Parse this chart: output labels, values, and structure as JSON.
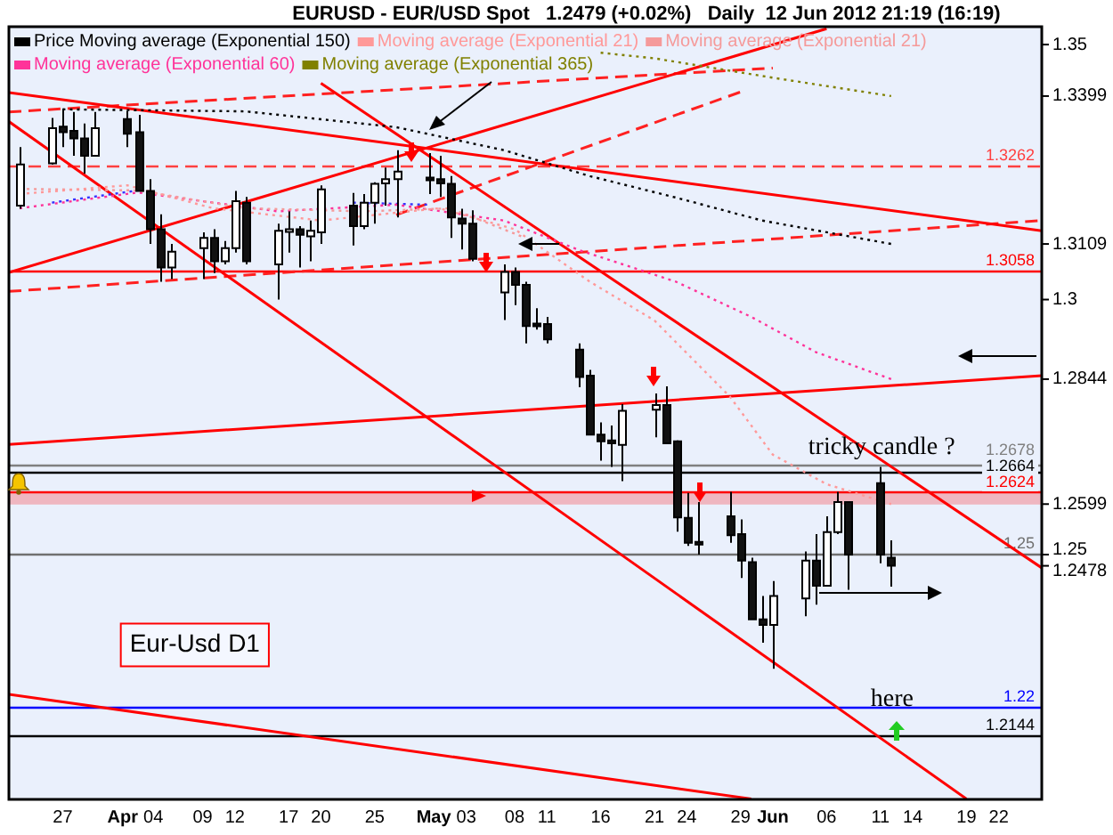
{
  "chart_data": {
    "type": "candlestick",
    "title": "EURUSD - EUR/USD Spot   1.2479 (+0.02%)   Daily  12 Jun 2012 21:19 (16:19)",
    "x": [
      "2012-03-23",
      "2012-03-26",
      "2012-03-27",
      "2012-03-28",
      "2012-03-29",
      "2012-03-30",
      "2012-04-02",
      "2012-04-03",
      "2012-04-04",
      "2012-04-05",
      "2012-04-06",
      "2012-04-09",
      "2012-04-10",
      "2012-04-11",
      "2012-04-12",
      "2012-04-13",
      "2012-04-16",
      "2012-04-17",
      "2012-04-18",
      "2012-04-19",
      "2012-04-20",
      "2012-04-23",
      "2012-04-24",
      "2012-04-25",
      "2012-04-26",
      "2012-04-27",
      "2012-04-30",
      "2012-05-01",
      "2012-05-02",
      "2012-05-03",
      "2012-05-04",
      "2012-05-07",
      "2012-05-08",
      "2012-05-09",
      "2012-05-10",
      "2012-05-11",
      "2012-05-14",
      "2012-05-15",
      "2012-05-16",
      "2012-05-17",
      "2012-05-18",
      "2012-05-21",
      "2012-05-22",
      "2012-05-23",
      "2012-05-24",
      "2012-05-25",
      "2012-05-28",
      "2012-05-29",
      "2012-05-30",
      "2012-05-31",
      "2012-06-01",
      "2012-06-04",
      "2012-06-05",
      "2012-06-06",
      "2012-06-07",
      "2012-06-08",
      "2012-06-11",
      "2012-06-12"
    ],
    "ohlc": [
      [
        1.3184,
        1.3299,
        1.3178,
        1.3265
      ],
      [
        1.3267,
        1.3356,
        1.3265,
        1.3336
      ],
      [
        1.3339,
        1.3374,
        1.3299,
        1.3328
      ],
      [
        1.3331,
        1.3368,
        1.3282,
        1.3316
      ],
      [
        1.3316,
        1.3345,
        1.3247,
        1.3282
      ],
      [
        1.3282,
        1.3368,
        1.3282,
        1.3336
      ],
      [
        1.3354,
        1.337,
        1.3299,
        1.3325
      ],
      [
        1.3328,
        1.3362,
        1.3213,
        1.3213
      ],
      [
        1.3213,
        1.3236,
        1.3109,
        1.3138
      ],
      [
        1.3138,
        1.3167,
        1.3035,
        1.3063
      ],
      [
        1.3063,
        1.3109,
        1.304,
        1.3094
      ],
      [
        1.3101,
        1.3132,
        1.304,
        1.3121
      ],
      [
        1.3121,
        1.3138,
        1.3052,
        1.3075
      ],
      [
        1.3075,
        1.3115,
        1.3069,
        1.3101
      ],
      [
        1.3101,
        1.3213,
        1.3092,
        1.3193
      ],
      [
        1.319,
        1.3201,
        1.3069,
        1.3075
      ],
      [
        1.3069,
        1.3149,
        1.3,
        1.3135
      ],
      [
        1.3134,
        1.3173,
        1.3092,
        1.3138
      ],
      [
        1.3138,
        1.3144,
        1.3063,
        1.3127
      ],
      [
        1.3124,
        1.3155,
        1.3075,
        1.3135
      ],
      [
        1.3132,
        1.3224,
        1.3109,
        1.3216
      ],
      [
        1.3184,
        1.3209,
        1.3106,
        1.3144
      ],
      [
        1.3144,
        1.3207,
        1.3138,
        1.319
      ],
      [
        1.319,
        1.323,
        1.3149,
        1.3227
      ],
      [
        1.3228,
        1.3259,
        1.3184,
        1.3236
      ],
      [
        1.3236,
        1.3293,
        1.3161,
        1.3251
      ],
      [
        1.3239,
        1.3287,
        1.3207,
        1.3236
      ],
      [
        1.3236,
        1.3282,
        1.3201,
        1.3228
      ],
      [
        1.3227,
        1.3242,
        1.3121,
        1.3161
      ],
      [
        1.3159,
        1.3178,
        1.3098,
        1.3149
      ],
      [
        1.3149,
        1.3175,
        1.3075,
        1.308
      ],
      [
        1.3014,
        1.3069,
        1.296,
        1.3054
      ],
      [
        1.3054,
        1.3063,
        1.2989,
        1.3029
      ],
      [
        1.3029,
        1.3035,
        1.2914,
        1.2948
      ],
      [
        1.2953,
        1.2983,
        1.2941,
        1.295
      ],
      [
        1.2952,
        1.2966,
        1.2914,
        1.2922
      ],
      [
        1.2902,
        1.2914,
        1.2828,
        1.2848
      ],
      [
        1.2851,
        1.2862,
        1.2735,
        1.2735
      ],
      [
        1.2735,
        1.2759,
        1.2684,
        1.2722
      ],
      [
        1.2724,
        1.2753,
        1.2672,
        1.2718
      ],
      [
        1.2715,
        1.2795,
        1.2644,
        1.2782
      ],
      [
        1.2784,
        1.2816,
        1.273,
        1.2793
      ],
      [
        1.2793,
        1.283,
        1.2718,
        1.2718
      ],
      [
        1.2722,
        1.2724,
        1.2545,
        1.2573
      ],
      [
        1.2572,
        1.2621,
        1.2517,
        1.2523
      ],
      [
        1.2525,
        1.2603,
        1.25,
        1.252
      ],
      [
        1.2575,
        1.2623,
        1.2523,
        1.2538
      ],
      [
        1.254,
        1.2569,
        1.2454,
        1.2488
      ],
      [
        1.2485,
        1.2494,
        1.2373,
        1.2373
      ],
      [
        1.2373,
        1.2419,
        1.2327,
        1.2362
      ],
      [
        1.2362,
        1.2448,
        1.2276,
        1.2419
      ],
      [
        1.2414,
        1.2506,
        1.2379,
        1.2488
      ],
      [
        1.2488,
        1.254,
        1.2402,
        1.2439
      ],
      [
        1.2439,
        1.2575,
        1.2439,
        1.2544
      ],
      [
        1.2544,
        1.2623,
        1.254,
        1.2603
      ],
      [
        1.2603,
        1.2603,
        1.2431,
        1.25
      ],
      [
        1.264,
        1.2672,
        1.2483,
        1.25
      ],
      [
        1.2494,
        1.2528,
        1.2437,
        1.2478
      ]
    ],
    "series": [
      {
        "type": "line",
        "name": "Price Moving average (Exponential 150)",
        "color": "#000000",
        "line_style": "dotted",
        "x": [
          "2012-03-27",
          "2012-04-13",
          "2012-04-27",
          "2012-05-07",
          "2012-05-15",
          "2012-05-23",
          "2012-05-31",
          "2012-06-12"
        ],
        "values": [
          1.3373,
          1.3369,
          1.3338,
          1.3293,
          1.3242,
          1.32,
          1.3155,
          1.3109
        ]
      },
      {
        "type": "line",
        "name": "Moving average (Exponential 21)",
        "color": "#ff9999",
        "line_style": "dotted",
        "x": [
          "2012-03-23",
          "2012-04-02",
          "2012-04-10",
          "2012-04-20",
          "2012-05-01",
          "2012-05-08",
          "2012-05-15",
          "2012-05-21",
          "2012-05-28",
          "2012-06-01",
          "2012-06-06",
          "2012-06-12"
        ],
        "values": [
          1.3207,
          1.3224,
          1.3179,
          1.3155,
          1.3179,
          1.3138,
          1.3035,
          1.2959,
          1.281,
          1.2696,
          1.2638,
          1.2599
        ]
      },
      {
        "type": "line",
        "name": "Moving average (Exponential 21)",
        "color": "#f59a9a",
        "line_style": "dotted",
        "x": [
          "2012-03-23",
          "2012-04-03",
          "2012-04-13",
          "2012-04-24",
          "2012-05-02",
          "2012-05-09"
        ],
        "values": [
          1.3217,
          1.3214,
          1.3179,
          1.3173,
          1.3179,
          1.3121
        ]
      },
      {
        "type": "line",
        "name": "Moving average (Exponential 60)",
        "color": "#ff3399",
        "line_style": "dotted",
        "x": [
          "2012-03-23",
          "2012-04-03",
          "2012-04-16",
          "2012-04-27",
          "2012-05-07",
          "2012-05-14",
          "2012-05-23",
          "2012-05-30",
          "2012-06-05",
          "2012-06-12"
        ],
        "values": [
          1.3179,
          1.321,
          1.3173,
          1.3186,
          1.3155,
          1.3097,
          1.3035,
          1.2966,
          1.2897,
          1.2844
        ]
      },
      {
        "type": "line",
        "name": "Moving average (Exponential 365)",
        "color": "#808000",
        "line_style": "dotted",
        "x": [
          "2012-05-16",
          "2012-05-21",
          "2012-06-01",
          "2012-06-12"
        ],
        "values": [
          1.3484,
          1.3473,
          1.3435,
          1.3399
        ]
      },
      {
        "type": "line",
        "color": "#3333ff",
        "line_style": "dotted",
        "x": [
          "2012-03-26",
          "2012-04-03",
          "2012-04-12",
          "2012-04-23",
          "2012-04-30"
        ],
        "values": [
          1.319,
          1.3214,
          null,
          1.319,
          1.3186
        ]
      },
      {
        "type": "line",
        "color": "#ff0000",
        "line_style": "solid",
        "x": [
          "2012-03-22",
          "2012-06-26"
        ],
        "values": [
          1.3406,
          1.3135
        ]
      },
      {
        "type": "line",
        "color": "#ff0000",
        "line_style": "solid",
        "x": [
          "2012-04-20",
          "2012-06-26"
        ],
        "values": [
          1.3424,
          1.2474
        ]
      },
      {
        "type": "line",
        "color": "#ff0000",
        "line_style": "solid",
        "x": [
          "2012-03-22",
          "2012-06-19"
        ],
        "values": [
          1.3349,
          1.2021
        ]
      },
      {
        "type": "line",
        "color": "#ff0000",
        "line_style": "solid",
        "x": [
          "2012-03-22",
          "2012-05-30"
        ],
        "values": [
          1.2226,
          1.2021
        ]
      },
      {
        "type": "line",
        "color": "#ff0000",
        "line_style": "solid",
        "x": [
          "2012-03-22",
          "2012-06-06"
        ],
        "values": [
          1.3053,
          1.3531
        ]
      },
      {
        "type": "line",
        "color": "#ff0000",
        "line_style": "solid",
        "x": [
          "2012-03-22",
          "2012-06-26"
        ],
        "values": [
          1.2716,
          1.2851
        ]
      },
      {
        "type": "line",
        "color": "#ff2020",
        "line_style": "dashed",
        "x": [
          "2012-03-22",
          "2012-06-26"
        ],
        "values": [
          1.3016,
          1.3155
        ]
      },
      {
        "type": "line",
        "color": "#ff2020",
        "line_style": "dashed",
        "x": [
          "2012-03-22",
          "2012-06-01"
        ],
        "values": [
          1.3368,
          1.3454
        ]
      },
      {
        "type": "line",
        "color": "#ff2020",
        "line_style": "dashed",
        "x": [
          "2012-04-27",
          "2012-05-29"
        ],
        "values": [
          1.3166,
          1.3407
        ]
      }
    ],
    "xlim": [
      "2012-03-22",
      "2012-06-26"
    ],
    "xticks": [
      {
        "value": "2012-03-27",
        "label": "27"
      },
      {
        "value": "2012-04-02",
        "label": "Apr"
      },
      {
        "value": "2012-04-04",
        "label": "04"
      },
      {
        "value": "2012-04-09",
        "label": "09"
      },
      {
        "value": "2012-04-12",
        "label": "12"
      },
      {
        "value": "2012-04-17",
        "label": "17"
      },
      {
        "value": "2012-04-20",
        "label": "20"
      },
      {
        "value": "2012-04-25",
        "label": "25"
      },
      {
        "value": "2012-05-01",
        "label": "May"
      },
      {
        "value": "2012-05-03",
        "label": "03"
      },
      {
        "value": "2012-05-08",
        "label": "08"
      },
      {
        "value": "2012-05-11",
        "label": "11"
      },
      {
        "value": "2012-05-16",
        "label": "16"
      },
      {
        "value": "2012-05-21",
        "label": "21"
      },
      {
        "value": "2012-05-24",
        "label": "24"
      },
      {
        "value": "2012-05-29",
        "label": "29"
      },
      {
        "value": "2012-06-01",
        "label": "Jun"
      },
      {
        "value": "2012-06-06",
        "label": "06"
      },
      {
        "value": "2012-06-11",
        "label": "11"
      },
      {
        "value": "2012-06-14",
        "label": "14"
      },
      {
        "value": "2012-06-19",
        "label": "19"
      },
      {
        "value": "2012-06-22",
        "label": "22"
      }
    ],
    "ylim": [
      1.202,
      1.3535
    ],
    "yticks": [
      1.35,
      1.3399,
      1.3109,
      1.3,
      1.2844,
      1.2599,
      1.25,
      1.2478
    ],
    "ref_lines": [
      {
        "axis": "y",
        "value": 1.3262,
        "label": "1.3262",
        "color": "#ff4040",
        "line_style": "dashed"
      },
      {
        "axis": "y",
        "value": 1.3058,
        "label": "1.3058",
        "color": "#ff0000"
      },
      {
        "axis": "y",
        "value": 1.2678,
        "label": "1.2678",
        "color": "#808080"
      },
      {
        "axis": "y",
        "value": 1.2664,
        "label": "1.2664",
        "color": "#000000"
      },
      {
        "axis": "y",
        "value": 1.2624,
        "label": "1.2624",
        "color": "#ff0000"
      },
      {
        "axis": "y",
        "value": 1.25,
        "label": "1.25",
        "color": "#707070"
      },
      {
        "axis": "y",
        "value": 1.22,
        "label": "1.22",
        "color": "#0000ff"
      },
      {
        "axis": "y",
        "value": 1.2144,
        "label": "1.2144",
        "color": "#000000"
      }
    ],
    "bands": [
      {
        "axis": "y",
        "from": 1.2598,
        "to": 1.2624,
        "color": "#f0a8b0"
      }
    ],
    "annotations": [
      "tricky candle ?",
      "here",
      "Eur-Usd D1"
    ],
    "legend": "top left"
  }
}
